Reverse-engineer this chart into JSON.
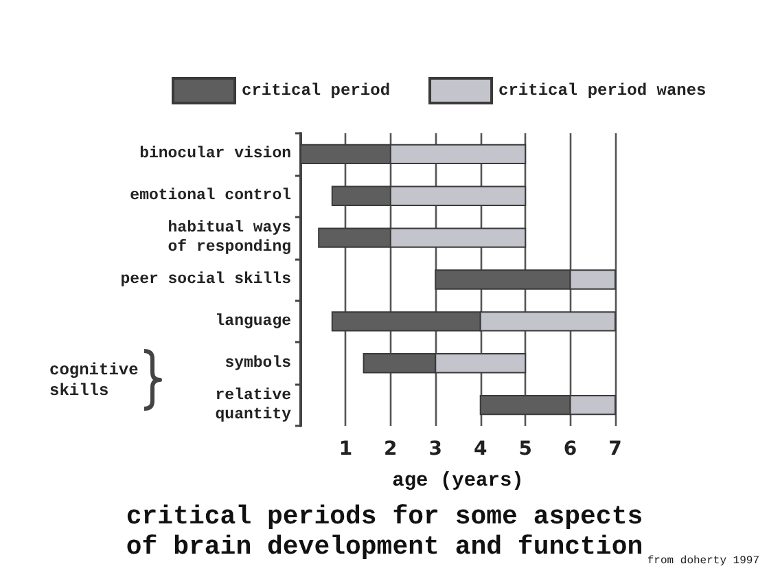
{
  "chart_data": {
    "type": "bar",
    "orientation": "horizontal",
    "title": "critical periods for some aspects\nof brain development and function",
    "xlabel": "age (years)",
    "categories": [
      "binocular vision",
      "emotional control",
      "habitual ways\nof responding",
      "peer social skills",
      "language",
      "symbols",
      "relative\nquantity"
    ],
    "series": [
      {
        "name": "critical period",
        "color": "#5e5e5e",
        "base": [
          0,
          0.7,
          0.4,
          3,
          0.7,
          1.4,
          4
        ],
        "values": [
          2,
          1.3,
          1.6,
          3,
          3.3,
          1.6,
          2
        ]
      },
      {
        "name": "critical period wanes",
        "color": "#c4c4cc",
        "base": [
          2,
          2,
          2,
          6,
          4,
          3,
          6
        ],
        "values": [
          3,
          3,
          3,
          1,
          3,
          2,
          1
        ]
      }
    ],
    "xlim": [
      0,
      7
    ],
    "xticks": [
      1,
      2,
      3,
      4,
      5,
      6,
      7
    ],
    "grid": "x",
    "legend": "top",
    "annotations": [
      "cognitive\nskills",
      "from doherty 1997"
    ]
  }
}
